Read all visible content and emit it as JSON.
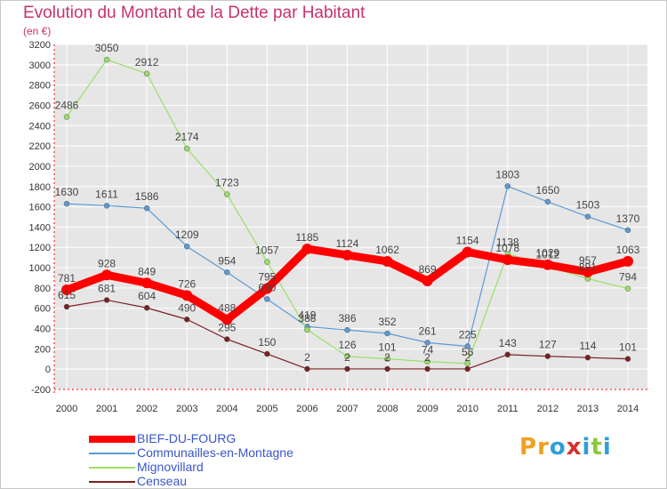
{
  "title": "Evolution du Montant de la Dette par Habitant",
  "subtitle": "(en €)",
  "logo": {
    "letters": [
      "P",
      "r",
      "o",
      "x",
      "i",
      "t",
      "i"
    ],
    "colors": [
      "#f0a020",
      "#f0a020",
      "#2e9fd8",
      "#d8302e",
      "#2e9fd8",
      "#8cc83c",
      "#2e9fd8"
    ]
  },
  "chart_data": {
    "type": "line",
    "x": [
      "2000",
      "2001",
      "2002",
      "2003",
      "2004",
      "2005",
      "2006",
      "2007",
      "2008",
      "2009",
      "2010",
      "2011",
      "2012",
      "2013",
      "2014"
    ],
    "ylim": [
      -200,
      3200
    ],
    "yticks": [
      "-200",
      "0",
      "200",
      "400",
      "600",
      "800",
      "1000",
      "1200",
      "1400",
      "1600",
      "1800",
      "2000",
      "2200",
      "2400",
      "2600",
      "2800",
      "3000",
      "3200"
    ],
    "grid": true,
    "legend_position": "bottom-left",
    "series": [
      {
        "name": "BIEF-DU-FOURG",
        "color": "#ff0000",
        "values": [
          781,
          928,
          849,
          726,
          488,
          795,
          1185,
          1124,
          1062,
          869,
          1154,
          1078,
          1029,
          957,
          1063
        ],
        "labels": [
          "781",
          "928",
          "849",
          "726",
          "488",
          "795",
          "1185",
          "1124",
          "1062",
          "869",
          "1154",
          "1078",
          "1029",
          "957",
          "1063"
        ]
      },
      {
        "name": "Communailles-en-Montagne",
        "color": "#5b9bd5",
        "values": [
          1630,
          1611,
          1586,
          1209,
          954,
          690,
          419,
          386,
          352,
          261,
          225,
          1803,
          1650,
          1503,
          1370
        ],
        "labels": [
          "1630",
          "1611",
          "1586",
          "1209",
          "954",
          "690",
          "419",
          "386",
          "352",
          "261",
          "225",
          "1803",
          "1650",
          "1503",
          "1370"
        ]
      },
      {
        "name": "Mignovillard",
        "color": "#99e066",
        "values": [
          2486,
          3050,
          2912,
          2174,
          1723,
          1057,
          388,
          126,
          101,
          74,
          56,
          1138,
          1012,
          891,
          794
        ],
        "labels": [
          "2486",
          "3050",
          "2912",
          "2174",
          "1723",
          "1057",
          "388",
          "126",
          "101",
          "74",
          "56",
          "1138",
          "1012",
          "891",
          "794"
        ]
      },
      {
        "name": "Censeau",
        "color": "#7b2020",
        "values": [
          615,
          681,
          604,
          490,
          295,
          150,
          2,
          2,
          2,
          2,
          2,
          143,
          127,
          114,
          101
        ],
        "labels": [
          "615",
          "681",
          "604",
          "490",
          "295",
          "150",
          "2",
          "2",
          "2",
          "2",
          "2",
          "143",
          "127",
          "114",
          "101"
        ]
      }
    ]
  }
}
